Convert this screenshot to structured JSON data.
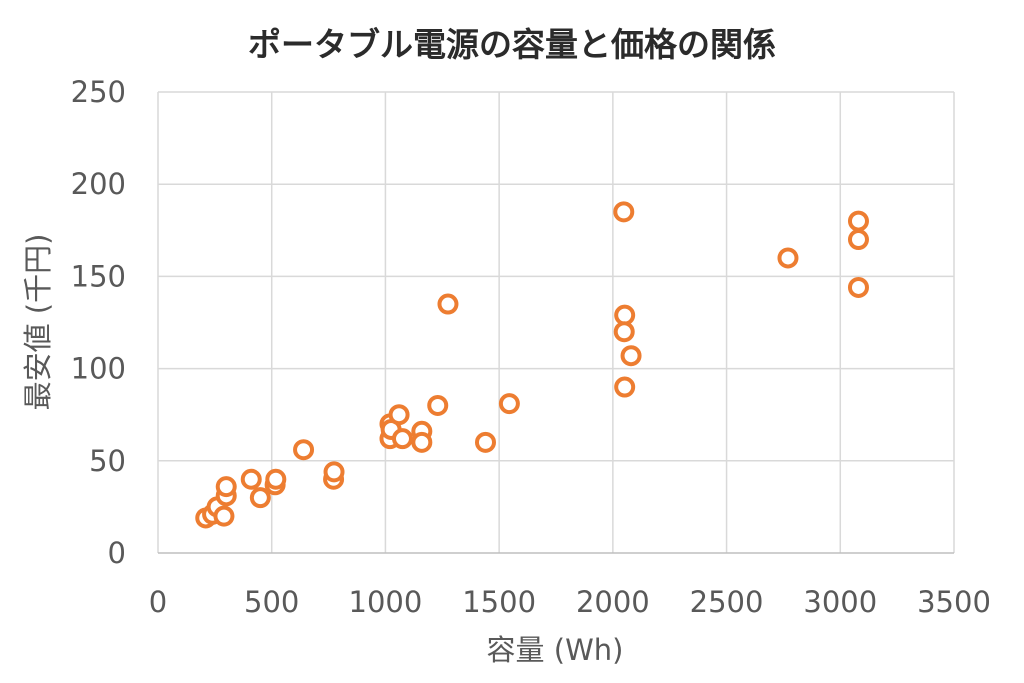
{
  "chart_data": {
    "type": "scatter",
    "title": "ポータブル電源の容量と価格の関係",
    "xlabel": "容量 (Wh)",
    "ylabel": "最安値 (千円)",
    "xlim": [
      0,
      3500
    ],
    "ylim": [
      0,
      250
    ],
    "xticks": [
      0,
      500,
      1000,
      1500,
      2000,
      2500,
      3000,
      3500
    ],
    "yticks": [
      0,
      50,
      100,
      150,
      200,
      250
    ],
    "grid": true,
    "marker_color": "#ed7d31",
    "series": [
      {
        "points": [
          [
            210,
            19
          ],
          [
            240,
            21
          ],
          [
            260,
            25
          ],
          [
            290,
            20
          ],
          [
            300,
            31
          ],
          [
            300,
            36
          ],
          [
            410,
            40
          ],
          [
            450,
            30
          ],
          [
            515,
            37
          ],
          [
            518,
            40
          ],
          [
            640,
            56
          ],
          [
            772,
            40
          ],
          [
            774,
            44
          ],
          [
            1020,
            62
          ],
          [
            1020,
            70
          ],
          [
            1025,
            67
          ],
          [
            1060,
            75
          ],
          [
            1075,
            62
          ],
          [
            1160,
            66
          ],
          [
            1160,
            60
          ],
          [
            1230,
            80
          ],
          [
            1275,
            135
          ],
          [
            1440,
            60
          ],
          [
            1545,
            81
          ],
          [
            2048,
            185
          ],
          [
            2052,
            129
          ],
          [
            2050,
            120
          ],
          [
            2080,
            107
          ],
          [
            2052,
            90
          ],
          [
            2770,
            160
          ],
          [
            3080,
            180
          ],
          [
            3080,
            170
          ],
          [
            3080,
            144
          ]
        ]
      }
    ]
  }
}
